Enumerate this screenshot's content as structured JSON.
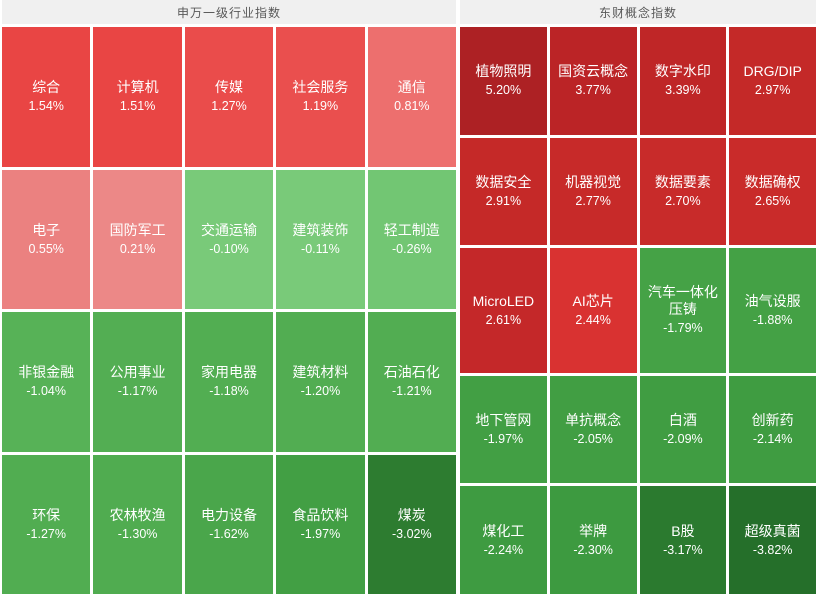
{
  "app": {
    "background": "#ffffff",
    "header_bg": "#f0f0f0",
    "header_text_color": "#595959",
    "tile_text_color": "#ffffff"
  },
  "sections": [
    {
      "title": "申万一级行业指数",
      "columns": 5,
      "flex": "0 0 454px",
      "tiles": [
        {
          "name": "综合",
          "change": "1.54%",
          "color": "#e94544"
        },
        {
          "name": "计算机",
          "change": "1.51%",
          "color": "#e94544"
        },
        {
          "name": "传媒",
          "change": "1.27%",
          "color": "#ea4c4b"
        },
        {
          "name": "社会服务",
          "change": "1.19%",
          "color": "#ea4f4e"
        },
        {
          "name": "通信",
          "change": "0.81%",
          "color": "#ed6f6e"
        },
        {
          "name": "电子",
          "change": "0.55%",
          "color": "#eb8180"
        },
        {
          "name": "国防军工",
          "change": "0.21%",
          "color": "#ec8887"
        },
        {
          "name": "交通运输",
          "change": "-0.10%",
          "color": "#79ca79"
        },
        {
          "name": "建筑装饰",
          "change": "-0.11%",
          "color": "#79ca79"
        },
        {
          "name": "轻工制造",
          "change": "-0.26%",
          "color": "#72c673"
        },
        {
          "name": "非银金融",
          "change": "-1.04%",
          "color": "#57b257"
        },
        {
          "name": "公用事业",
          "change": "-1.17%",
          "color": "#53ae53"
        },
        {
          "name": "家用电器",
          "change": "-1.18%",
          "color": "#52ae52"
        },
        {
          "name": "建筑材料",
          "change": "-1.20%",
          "color": "#52ad52"
        },
        {
          "name": "石油石化",
          "change": "-1.21%",
          "color": "#52ad52"
        },
        {
          "name": "环保",
          "change": "-1.27%",
          "color": "#51ad51"
        },
        {
          "name": "农林牧渔",
          "change": "-1.30%",
          "color": "#50ac50"
        },
        {
          "name": "电力设备",
          "change": "-1.62%",
          "color": "#4aa64b"
        },
        {
          "name": "食品饮料",
          "change": "-1.97%",
          "color": "#429f44"
        },
        {
          "name": "煤炭",
          "change": "-3.02%",
          "color": "#2d7c30"
        }
      ]
    },
    {
      "title": "东财概念指数",
      "columns": 4,
      "flex": "1 1 auto",
      "tiles": [
        {
          "name": "植物照明",
          "change": "5.20%",
          "color": "#ad2124"
        },
        {
          "name": "国资云概念",
          "change": "3.77%",
          "color": "#bb2426"
        },
        {
          "name": "数字水印",
          "change": "3.39%",
          "color": "#bf2627"
        },
        {
          "name": "DRG/DIP",
          "change": "2.97%",
          "color": "#c42928"
        },
        {
          "name": "数据安全",
          "change": "2.91%",
          "color": "#c52928"
        },
        {
          "name": "机器视觉",
          "change": "2.77%",
          "color": "#c72a29"
        },
        {
          "name": "数据要素",
          "change": "2.70%",
          "color": "#c82b2a"
        },
        {
          "name": "数据确权",
          "change": "2.65%",
          "color": "#c92b2a"
        },
        {
          "name": "MicroLED",
          "change": "2.61%",
          "color": "#c42829"
        },
        {
          "name": "AI芯片",
          "change": "2.44%",
          "color": "#d93231"
        },
        {
          "name": "汽车一体化压铸",
          "change": "-1.79%",
          "color": "#45a246"
        },
        {
          "name": "油气设服",
          "change": "-1.88%",
          "color": "#44a145"
        },
        {
          "name": "地下管网",
          "change": "-1.97%",
          "color": "#429f44"
        },
        {
          "name": "单抗概念",
          "change": "-2.05%",
          "color": "#419e43"
        },
        {
          "name": "白酒",
          "change": "-2.09%",
          "color": "#409d42"
        },
        {
          "name": "创新药",
          "change": "-2.14%",
          "color": "#3f9c41"
        },
        {
          "name": "煤化工",
          "change": "-2.24%",
          "color": "#3e9b41"
        },
        {
          "name": "举牌",
          "change": "-2.30%",
          "color": "#3d9a40"
        },
        {
          "name": "B股",
          "change": "-3.17%",
          "color": "#2b7a2f"
        },
        {
          "name": "超级真菌",
          "change": "-3.82%",
          "color": "#256f2a"
        }
      ]
    }
  ],
  "chart_data": [
    {
      "type": "heatmap",
      "title": "申万一级行业指数",
      "unit": "percent change",
      "layout": {
        "columns": 5,
        "rows": 4,
        "order": "row-major",
        "legend": "none"
      },
      "color_rule": "red = positive daily change, green = negative; intensity scales with magnitude",
      "categories": [
        "综合",
        "计算机",
        "传媒",
        "社会服务",
        "通信",
        "电子",
        "国防军工",
        "交通运输",
        "建筑装饰",
        "轻工制造",
        "非银金融",
        "公用事业",
        "家用电器",
        "建筑材料",
        "石油石化",
        "环保",
        "农林牧渔",
        "电力设备",
        "食品饮料",
        "煤炭"
      ],
      "values": [
        1.54,
        1.51,
        1.27,
        1.19,
        0.81,
        0.55,
        0.21,
        -0.1,
        -0.11,
        -0.26,
        -1.04,
        -1.17,
        -1.18,
        -1.2,
        -1.21,
        -1.27,
        -1.3,
        -1.62,
        -1.97,
        -3.02
      ]
    },
    {
      "type": "heatmap",
      "title": "东财概念指数",
      "unit": "percent change",
      "layout": {
        "columns": 4,
        "rows": 5,
        "order": "row-major",
        "legend": "none"
      },
      "color_rule": "red = positive daily change, green = negative; intensity scales with magnitude",
      "categories": [
        "植物照明",
        "国资云概念",
        "数字水印",
        "DRG/DIP",
        "数据安全",
        "机器视觉",
        "数据要素",
        "数据确权",
        "MicroLED",
        "AI芯片",
        "汽车一体化压铸",
        "油气设服",
        "地下管网",
        "单抗概念",
        "白酒",
        "创新药",
        "煤化工",
        "举牌",
        "B股",
        "超级真菌"
      ],
      "values": [
        5.2,
        3.77,
        3.39,
        2.97,
        2.91,
        2.77,
        2.7,
        2.65,
        2.61,
        2.44,
        -1.79,
        -1.88,
        -1.97,
        -2.05,
        -2.09,
        -2.14,
        -2.24,
        -2.3,
        -3.17,
        -3.82
      ]
    }
  ]
}
